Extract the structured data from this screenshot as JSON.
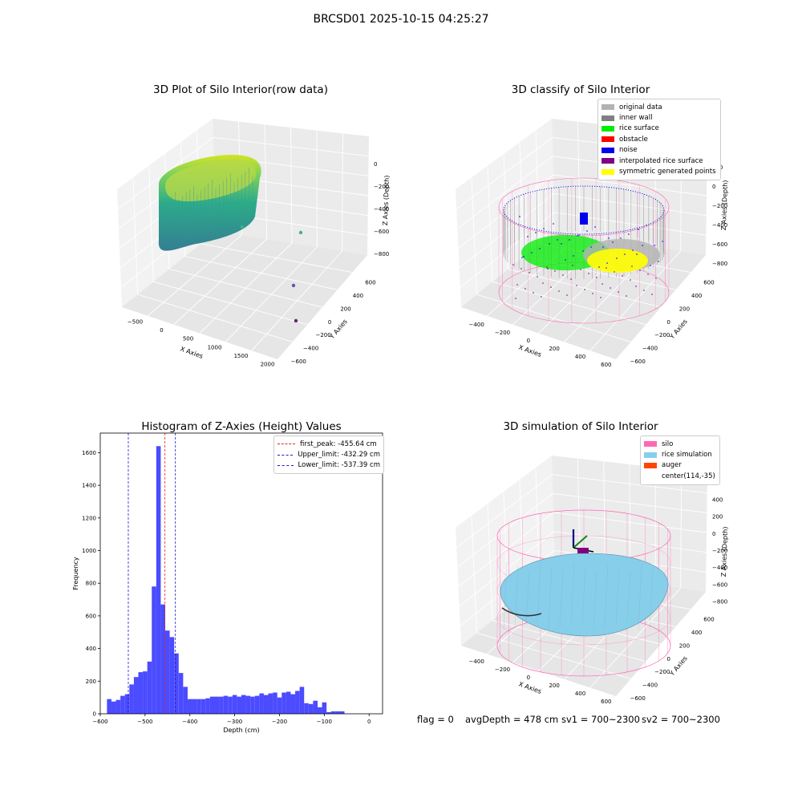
{
  "figure": {
    "suptitle": "BRCSD01 2025-10-15 04:25:27",
    "footer": {
      "flag": "flag = 0",
      "avg": "avgDepth = 478 cm",
      "sv1": "sv1 = 700~2300",
      "sv2": "sv2 = 700~2300"
    }
  },
  "colors": {
    "hist_bar": "#4b4bff",
    "peak_line": "#e0241a",
    "limit_line": "#1a1acc",
    "original": "#b3b3b3",
    "inner_wall": "#808080",
    "rice_surface": "#00ee00",
    "obstacle": "#ff0000",
    "noise": "#0000ee",
    "interpolated": "#800080",
    "symmetric": "#ffff00",
    "silo": "#ff69b4",
    "rice_sim": "#87ceeb",
    "auger": "#ff4500"
  },
  "chart_data": [
    {
      "type": "scatter",
      "panel": "3d-raw",
      "title": "3D Plot of Silo Interior(row data)",
      "xlabel": "X Axies",
      "ylabel": "Y Axies",
      "zlabel": "Z Axies (Depth)",
      "x_ticks": [
        "−500",
        "0",
        "500",
        "1000",
        "1500",
        "2000"
      ],
      "y_ticks": [
        "−600",
        "−400",
        "−200",
        "0",
        "200",
        "400",
        "600"
      ],
      "z_ticks": [
        "−800",
        "−600",
        "−400",
        "−200",
        "0"
      ],
      "xlim": [
        -600,
        2100
      ],
      "ylim": [
        -650,
        650
      ],
      "zlim": [
        -900,
        50
      ],
      "outliers": [
        {
          "x": 1900,
          "y": 350,
          "z": -600
        },
        {
          "x": 1950,
          "y": -100,
          "z": -750
        },
        {
          "x": 2000,
          "y": -400,
          "z": -800
        }
      ],
      "grid": true
    },
    {
      "type": "scatter",
      "panel": "3d-classify",
      "title": "3D classify of Silo Interior",
      "xlabel": "X Axies",
      "ylabel": "Y Axies",
      "zlabel": "Z Axies (Depth)",
      "x_ticks": [
        "−400",
        "−200",
        "0",
        "200",
        "400",
        "600"
      ],
      "y_ticks": [
        "−600",
        "−400",
        "−200",
        "0",
        "200",
        "400",
        "600"
      ],
      "z_ticks": [
        "−800",
        "−600",
        "−400",
        "−200",
        "0",
        "200"
      ],
      "xlim": [
        -500,
        700
      ],
      "ylim": [
        -650,
        650
      ],
      "zlim": [
        -900,
        300
      ],
      "legend": [
        "original data",
        "inner wall",
        "rice surface",
        "obstacle",
        "noise",
        "interpolated rice surface",
        "symmetric generated points"
      ],
      "legend_position": "top-right",
      "grid": true
    },
    {
      "type": "bar",
      "panel": "histogram",
      "title": "Histogram of Z-Axies (Height) Values",
      "xlabel": "Depth (cm)",
      "ylabel": "Frequency",
      "xlim": [
        -600,
        30
      ],
      "ylim": [
        0,
        1720
      ],
      "x_ticks": [
        -600,
        -500,
        -400,
        -300,
        -200,
        -100,
        0
      ],
      "y_ticks": [
        0,
        200,
        400,
        600,
        800,
        1000,
        1200,
        1400,
        1600
      ],
      "bin_start": -585,
      "bin_width": 10,
      "values": [
        90,
        75,
        85,
        110,
        120,
        180,
        225,
        255,
        260,
        320,
        780,
        1640,
        670,
        510,
        470,
        370,
        250,
        165,
        90,
        90,
        90,
        90,
        95,
        105,
        105,
        105,
        110,
        105,
        115,
        105,
        115,
        110,
        105,
        110,
        125,
        115,
        125,
        130,
        100,
        130,
        135,
        120,
        140,
        165,
        65,
        60,
        80,
        40,
        70,
        10,
        15,
        15,
        15
      ],
      "vlines": [
        {
          "label": "first_peak: -455.64 cm",
          "x": -455.64,
          "color": "peak"
        },
        {
          "label": "Upper_limit: -432.29 cm",
          "x": -432.29,
          "color": "limit"
        },
        {
          "label": "Lower_limit: -537.39 cm",
          "x": -537.39,
          "color": "limit"
        }
      ],
      "legend_position": "top-right",
      "grid": false
    },
    {
      "type": "surface",
      "panel": "3d-simulation",
      "title": "3D simulation of Silo Interior",
      "xlabel": "X Axies",
      "ylabel": "Y Axies",
      "zlabel": "Z Axies (Depth)",
      "x_ticks": [
        "−400",
        "−200",
        "0",
        "200",
        "400",
        "600"
      ],
      "y_ticks": [
        "−600",
        "−400",
        "−200",
        "0",
        "200",
        "400",
        "600"
      ],
      "z_ticks": [
        "−800",
        "−600",
        "−400",
        "−200",
        "0",
        "200",
        "400"
      ],
      "xlim": [
        -500,
        700
      ],
      "ylim": [
        -650,
        650
      ],
      "zlim": [
        -900,
        450
      ],
      "legend": [
        "silo",
        "rice simulation",
        "auger",
        "center(114,-35)"
      ],
      "legend_position": "top-right",
      "center": [
        114,
        -35
      ],
      "grid": true
    }
  ]
}
